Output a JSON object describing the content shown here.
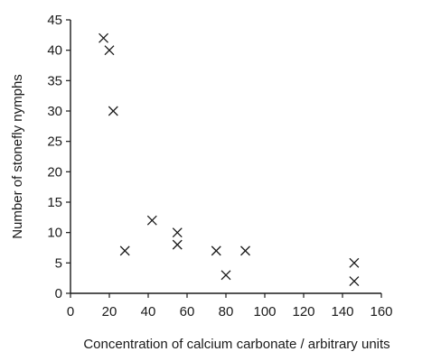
{
  "chart_data": {
    "type": "scatter",
    "xlabel": "Concentration of calcium carbonate / arbitrary units",
    "ylabel": "Number of stonefly nymphs",
    "xlim": [
      0,
      160
    ],
    "ylim": [
      0,
      45
    ],
    "x_ticks": [
      0,
      20,
      40,
      60,
      80,
      100,
      120,
      140,
      160
    ],
    "y_ticks": [
      0,
      5,
      10,
      15,
      20,
      25,
      30,
      35,
      40,
      45
    ],
    "marker": "x",
    "grid": false,
    "points": [
      {
        "x": 17,
        "y": 42
      },
      {
        "x": 20,
        "y": 40
      },
      {
        "x": 22,
        "y": 30
      },
      {
        "x": 28,
        "y": 7
      },
      {
        "x": 42,
        "y": 12
      },
      {
        "x": 55,
        "y": 10
      },
      {
        "x": 55,
        "y": 8
      },
      {
        "x": 75,
        "y": 7
      },
      {
        "x": 80,
        "y": 3
      },
      {
        "x": 90,
        "y": 7
      },
      {
        "x": 146,
        "y": 5
      },
      {
        "x": 146,
        "y": 2
      }
    ]
  }
}
